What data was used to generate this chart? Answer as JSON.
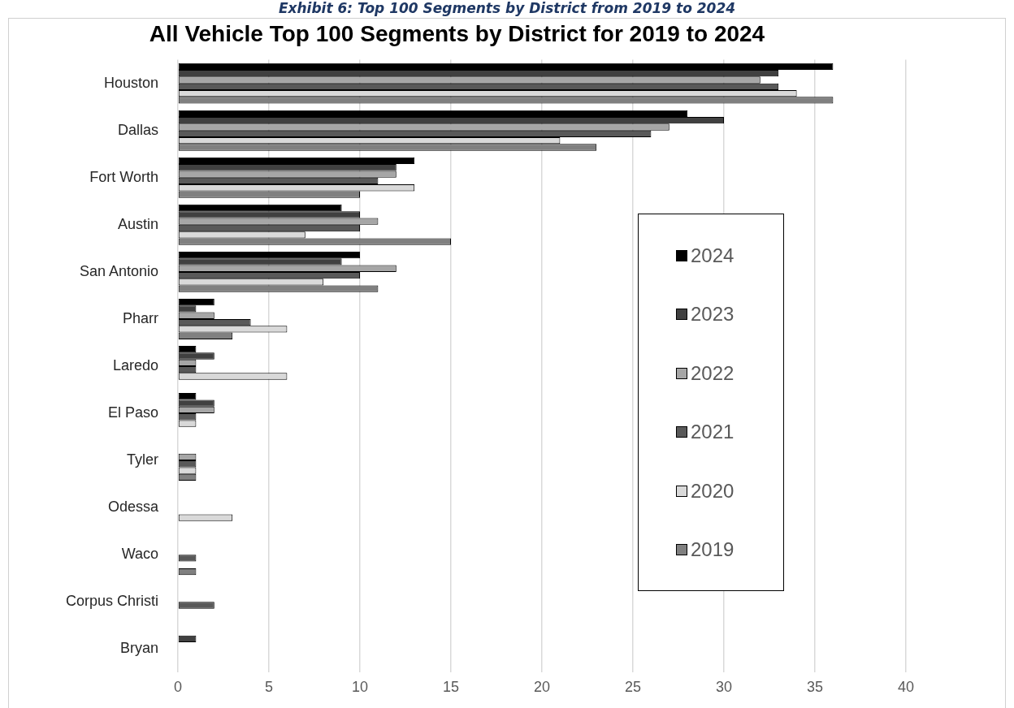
{
  "chart_data": {
    "type": "bar",
    "orientation": "horizontal",
    "title": "All Vehicle Top 100 Segments by District for 2019 to 2024",
    "annotations": [
      "Exhibit 6: Top 100 Segments by District from 2019 to 2024"
    ],
    "categories": [
      "Houston",
      "Dallas",
      "Fort Worth",
      "Austin",
      "San Antonio",
      "Pharr",
      "Laredo",
      "El Paso",
      "Tyler",
      "Odessa",
      "Waco",
      "Corpus Christi",
      "Bryan"
    ],
    "series": [
      {
        "name": "2024",
        "color": "#000000",
        "values": [
          36,
          28,
          13,
          9,
          10,
          2,
          1,
          1,
          0,
          0,
          0,
          0,
          0
        ]
      },
      {
        "name": "2023",
        "color": "#404040",
        "values": [
          33,
          30,
          12,
          10,
          9,
          1,
          2,
          2,
          0,
          0,
          0,
          0,
          1
        ]
      },
      {
        "name": "2022",
        "color": "#a6a6a6",
        "values": [
          32,
          27,
          12,
          11,
          12,
          2,
          1,
          2,
          1,
          0,
          0,
          0,
          0
        ]
      },
      {
        "name": "2021",
        "color": "#595959",
        "values": [
          33,
          26,
          11,
          10,
          10,
          4,
          1,
          1,
          1,
          0,
          1,
          2,
          0
        ]
      },
      {
        "name": "2020",
        "color": "#d9d9d9",
        "values": [
          34,
          21,
          13,
          7,
          8,
          6,
          6,
          1,
          1,
          3,
          0,
          0,
          0
        ]
      },
      {
        "name": "2019",
        "color": "#808080",
        "values": [
          36,
          23,
          10,
          15,
          11,
          3,
          0,
          0,
          1,
          0,
          1,
          0,
          0
        ]
      }
    ],
    "xlim": [
      0,
      40
    ],
    "xticks": [
      0,
      5,
      10,
      15,
      20,
      25,
      30,
      35,
      40
    ],
    "grid": "x",
    "legend": "bottom right"
  }
}
